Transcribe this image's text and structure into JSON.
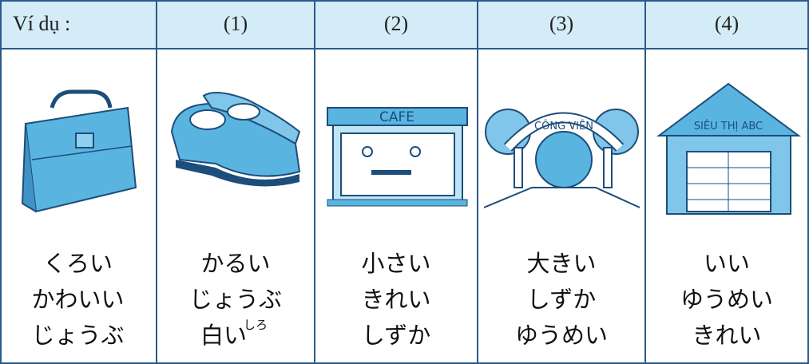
{
  "table": {
    "header": [
      "Ví dụ :",
      "(1)",
      "(2)",
      "(3)",
      "(4)"
    ],
    "columns": [
      {
        "lines": [
          "くろい",
          "かわいい",
          "じょうぶ"
        ]
      },
      {
        "lines": [
          "かるい",
          "じょうぶ"
        ],
        "kanji": {
          "base": "白い",
          "ruby": "しろ"
        }
      },
      {
        "sign": "CAFE",
        "lines": [
          "小さい",
          "きれい",
          "しずか"
        ]
      },
      {
        "sign": "CÔNG VIÊN",
        "lines": [
          "大きい",
          "しずか",
          "ゆうめい"
        ]
      },
      {
        "sign": "SIÊU THỊ ABC",
        "lines": [
          "いい",
          "ゆうめい",
          "きれい"
        ]
      }
    ]
  }
}
